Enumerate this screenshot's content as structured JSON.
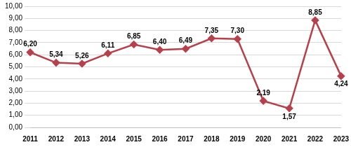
{
  "chart_data": {
    "type": "line",
    "categories": [
      "2011",
      "2012",
      "2013",
      "2014",
      "2015",
      "2016",
      "2017",
      "2018",
      "2019",
      "2020",
      "2021",
      "2022",
      "2023"
    ],
    "values": [
      6.2,
      5.34,
      5.26,
      6.11,
      6.85,
      6.4,
      6.49,
      7.35,
      7.3,
      2.19,
      1.57,
      8.85,
      4.24
    ],
    "value_labels": [
      "6,20",
      "5,34",
      "5,26",
      "6,11",
      "6,85",
      "6,40",
      "6,49",
      "7,35",
      "7,30",
      "2,19",
      "1,57",
      "8,85",
      "4,24"
    ],
    "color": "#b8404a",
    "marker": "diamond",
    "ylim": [
      0,
      10
    ],
    "yticks": [
      {
        "value": 0,
        "label": "0,00"
      },
      {
        "value": 1,
        "label": "1,00"
      },
      {
        "value": 2,
        "label": "2,00"
      },
      {
        "value": 3,
        "label": "3,00"
      },
      {
        "value": 4,
        "label": "4,00"
      },
      {
        "value": 5,
        "label": "5,00"
      },
      {
        "value": 6,
        "label": "6,00"
      },
      {
        "value": 7,
        "label": "7,00"
      },
      {
        "value": 8,
        "label": "8,00"
      },
      {
        "value": 9,
        "label": "9,00"
      },
      {
        "value": 10,
        "label": "10,00"
      }
    ],
    "grid": true,
    "data_labels": true
  }
}
